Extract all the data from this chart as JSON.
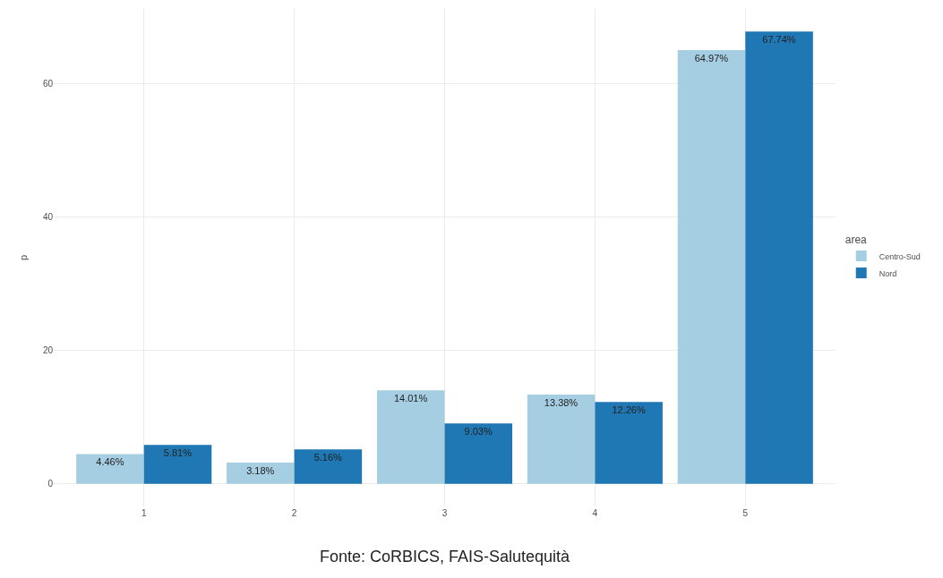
{
  "chart_data": {
    "type": "bar",
    "ylabel": "p",
    "legend_title": "area",
    "categories": [
      "1",
      "2",
      "3",
      "4",
      "5"
    ],
    "series": [
      {
        "name": "Centro-Sud",
        "color": "#a6cee3",
        "values": [
          4.46,
          3.18,
          14.01,
          13.38,
          64.97
        ],
        "value_labels": [
          "4.46%",
          "3.18%",
          "14.01%",
          "13.38%",
          "64.97%"
        ]
      },
      {
        "name": "Nord",
        "color": "#1f78b4",
        "values": [
          5.81,
          5.16,
          9.03,
          12.26,
          67.74
        ],
        "value_labels": [
          "5.81%",
          "5.16%",
          "9.03%",
          "12.26%",
          "67.74%"
        ]
      }
    ],
    "ylim": [
      -3.39,
      71.13
    ],
    "yticks": [
      0,
      20,
      40,
      60
    ],
    "grid": true,
    "legend": "right",
    "annotations": [
      "Fonte: CoRBICS, FAIS-Salutequità"
    ]
  }
}
